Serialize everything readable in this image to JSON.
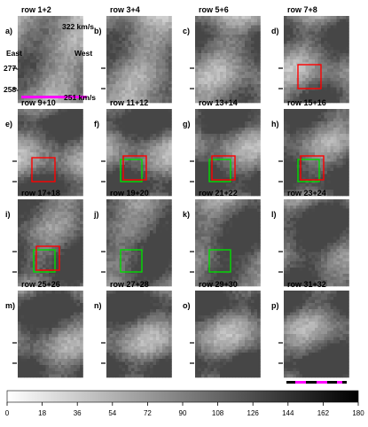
{
  "panels": [
    {
      "letter": "a)",
      "title": "row 1+2",
      "base": 150,
      "seed": 1,
      "boxes": []
    },
    {
      "letter": "b)",
      "title": "row 3+4",
      "base": 145,
      "seed": 2,
      "boxes": []
    },
    {
      "letter": "c)",
      "title": "row 5+6",
      "base": 140,
      "seed": 3,
      "boxes": []
    },
    {
      "letter": "d)",
      "title": "row 7+8",
      "base": 130,
      "seed": 4,
      "boxes": [
        {
          "color": "#ff0000"
        }
      ]
    },
    {
      "letter": "e)",
      "title": "row 9+10",
      "base": 125,
      "seed": 5,
      "boxes": [
        {
          "color": "#ff0000"
        }
      ]
    },
    {
      "letter": "f)",
      "title": "row 11+12",
      "base": 120,
      "seed": 6,
      "boxes": [
        {
          "color": "#00dd00"
        },
        {
          "color": "#ff0000"
        }
      ]
    },
    {
      "letter": "g)",
      "title": "row 13+14",
      "base": 118,
      "seed": 7,
      "boxes": [
        {
          "color": "#00dd00"
        },
        {
          "color": "#ff0000"
        }
      ]
    },
    {
      "letter": "h)",
      "title": "row 15+16",
      "base": 115,
      "seed": 8,
      "boxes": [
        {
          "color": "#00dd00"
        },
        {
          "color": "#ff0000"
        }
      ]
    },
    {
      "letter": "i)",
      "title": "row 17+18",
      "base": 110,
      "seed": 9,
      "boxes": [
        {
          "color": "#00dd00"
        },
        {
          "color": "#ff0000"
        }
      ]
    },
    {
      "letter": "j)",
      "title": "row 19+20",
      "base": 112,
      "seed": 10,
      "boxes": [
        {
          "color": "#00dd00"
        }
      ]
    },
    {
      "letter": "k)",
      "title": "row 21+22",
      "base": 112,
      "seed": 11,
      "boxes": [
        {
          "color": "#00dd00"
        }
      ]
    },
    {
      "letter": "l)",
      "title": "row 23+24",
      "base": 105,
      "seed": 12,
      "boxes": []
    },
    {
      "letter": "m)",
      "title": "row 25+26",
      "base": 115,
      "seed": 13,
      "boxes": []
    },
    {
      "letter": "n)",
      "title": "row 27+28",
      "base": 118,
      "seed": 14,
      "boxes": []
    },
    {
      "letter": "o)",
      "title": "row 29+30",
      "base": 118,
      "seed": 15,
      "boxes": []
    },
    {
      "letter": "p)",
      "title": "row 31+32",
      "base": 112,
      "seed": 16,
      "boxes": []
    }
  ],
  "annotations": {
    "vel_top": "322 km/s",
    "vel_bottom": "251 km/s",
    "east": "East",
    "west": "West",
    "tick_277": "277-",
    "tick_258": "258-"
  },
  "colors": {
    "magenta_bar": "#ff00ff",
    "red_box": "#ff0000",
    "green_box": "#00dd00"
  },
  "colorbar": {
    "ticks": [
      "0",
      "18",
      "36",
      "54",
      "72",
      "90",
      "108",
      "126",
      "144",
      "162",
      "180"
    ],
    "min": 0,
    "max": 180
  }
}
